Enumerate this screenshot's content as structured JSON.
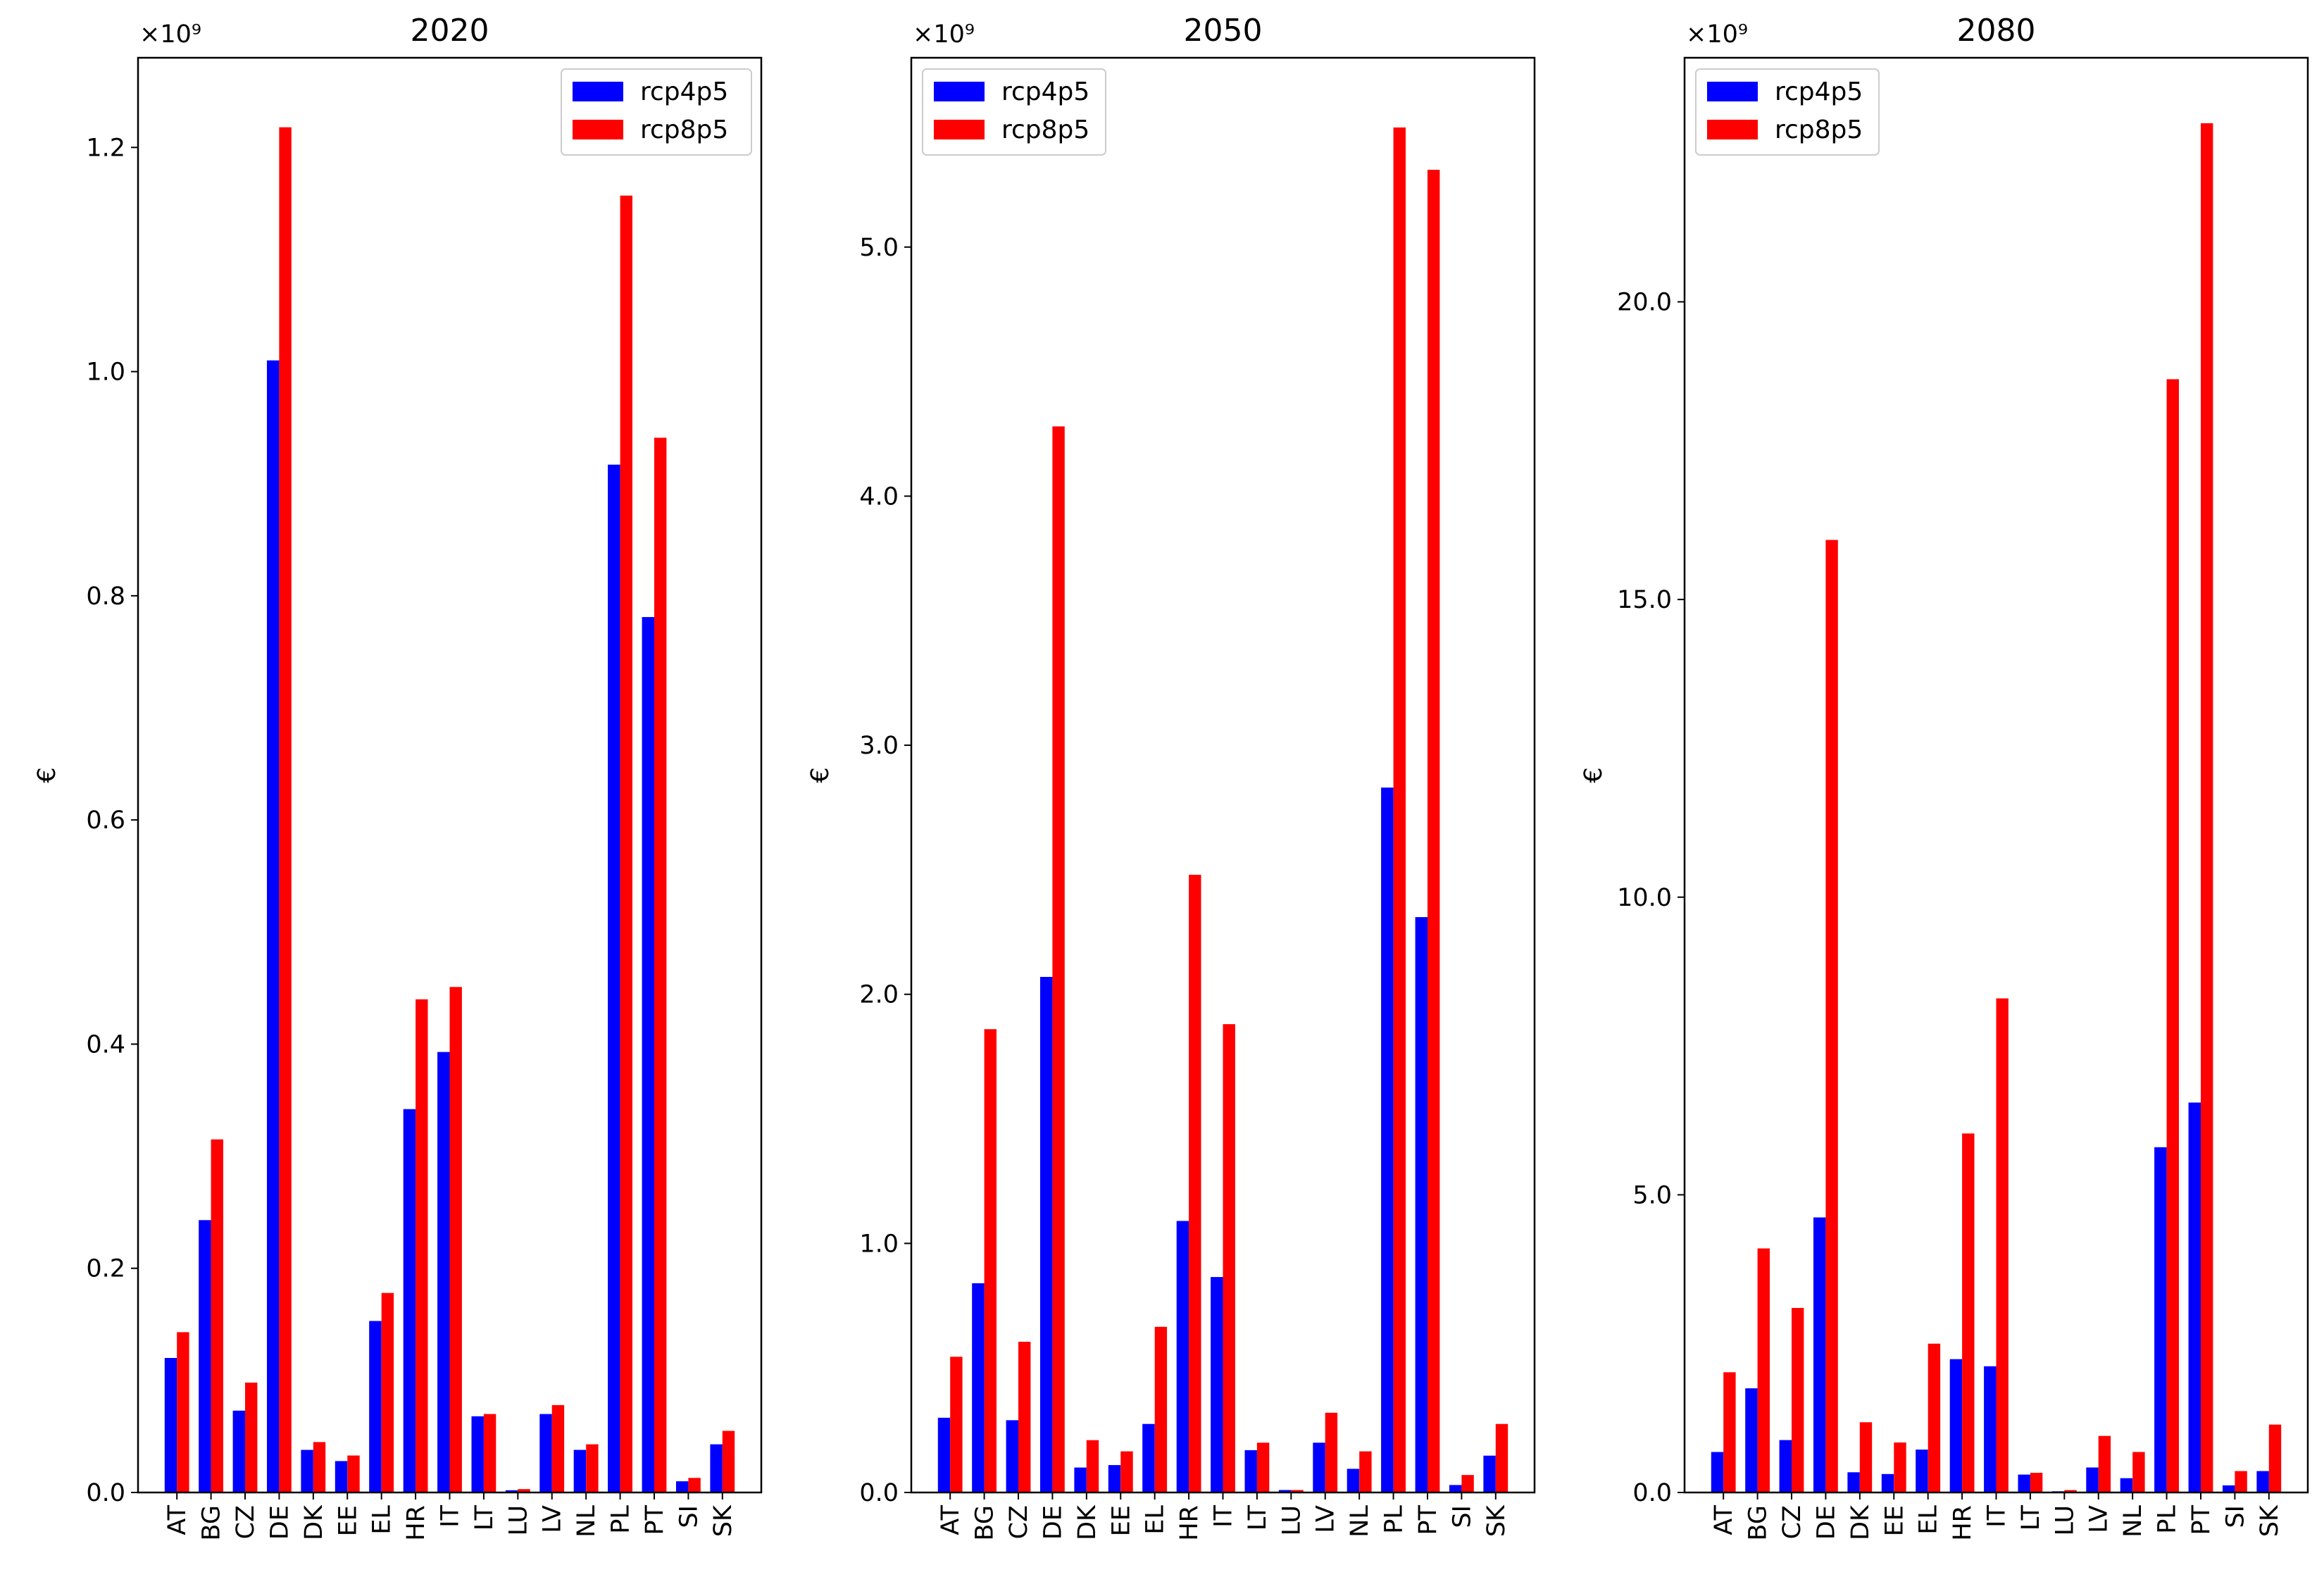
{
  "chart_data": [
    {
      "type": "bar",
      "title": "2020",
      "ylabel": "€",
      "xlabel": "",
      "exponent_label": "×10⁹",
      "ylim": [
        0,
        1.28
      ],
      "yticks": [
        "0.0",
        "0.2",
        "0.4",
        "0.6",
        "0.8",
        "1.0",
        "1.2"
      ],
      "ytick_values": [
        0,
        0.2,
        0.4,
        0.6,
        0.8,
        1.0,
        1.2
      ],
      "legend_position": "top-right",
      "categories": [
        "AT",
        "BG",
        "CZ",
        "DE",
        "DK",
        "EE",
        "EL",
        "HR",
        "IT",
        "LT",
        "LU",
        "LV",
        "NL",
        "PL",
        "PT",
        "SI",
        "SK"
      ],
      "series": [
        {
          "name": "rcp4p5",
          "color": "#0000ff",
          "values": [
            0.12,
            0.243,
            0.073,
            1.01,
            0.038,
            0.028,
            0.153,
            0.342,
            0.393,
            0.068,
            0.002,
            0.07,
            0.038,
            0.917,
            0.781,
            0.01,
            0.043
          ]
        },
        {
          "name": "rcp8p5",
          "color": "#ff0000",
          "values": [
            0.143,
            0.315,
            0.098,
            1.218,
            0.045,
            0.033,
            0.178,
            0.44,
            0.451,
            0.07,
            0.003,
            0.078,
            0.043,
            1.157,
            0.941,
            0.013,
            0.055
          ]
        }
      ]
    },
    {
      "type": "bar",
      "title": "2050",
      "ylabel": "€",
      "xlabel": "",
      "exponent_label": "×10⁹",
      "ylim": [
        0,
        5.76
      ],
      "yticks": [
        "0.0",
        "1.0",
        "2.0",
        "3.0",
        "4.0",
        "5.0"
      ],
      "ytick_values": [
        0,
        1,
        2,
        3,
        4,
        5
      ],
      "legend_position": "top-left",
      "categories": [
        "AT",
        "BG",
        "CZ",
        "DE",
        "DK",
        "EE",
        "EL",
        "HR",
        "IT",
        "LT",
        "LU",
        "LV",
        "NL",
        "PL",
        "PT",
        "SI",
        "SK"
      ],
      "series": [
        {
          "name": "rcp4p5",
          "color": "#0000ff",
          "values": [
            0.3,
            0.84,
            0.29,
            2.07,
            0.1,
            0.11,
            0.275,
            1.09,
            0.865,
            0.17,
            0.01,
            0.2,
            0.095,
            2.83,
            2.31,
            0.03,
            0.148
          ]
        },
        {
          "name": "rcp8p5",
          "color": "#ff0000",
          "values": [
            0.545,
            1.86,
            0.605,
            4.28,
            0.21,
            0.165,
            0.665,
            2.48,
            1.88,
            0.2,
            0.01,
            0.32,
            0.165,
            5.48,
            5.31,
            0.07,
            0.275
          ]
        }
      ]
    },
    {
      "type": "bar",
      "title": "2080",
      "ylabel": "€",
      "xlabel": "",
      "exponent_label": "×10⁹",
      "ylim": [
        0,
        24.1
      ],
      "yticks": [
        "0.0",
        "5.0",
        "10.0",
        "15.0",
        "20.0"
      ],
      "ytick_values": [
        0,
        5,
        10,
        15,
        20
      ],
      "legend_position": "top-left",
      "categories": [
        "AT",
        "BG",
        "CZ",
        "DE",
        "DK",
        "EE",
        "EL",
        "HR",
        "IT",
        "LT",
        "LU",
        "LV",
        "NL",
        "PL",
        "PT",
        "SI",
        "SK"
      ],
      "series": [
        {
          "name": "rcp4p5",
          "color": "#0000ff",
          "values": [
            0.68,
            1.75,
            0.88,
            4.62,
            0.34,
            0.31,
            0.72,
            2.24,
            2.12,
            0.3,
            0.02,
            0.42,
            0.24,
            5.8,
            6.55,
            0.12,
            0.36
          ]
        },
        {
          "name": "rcp8p5",
          "color": "#ff0000",
          "values": [
            2.02,
            4.1,
            3.1,
            16.0,
            1.18,
            0.84,
            2.5,
            6.03,
            8.3,
            0.33,
            0.04,
            0.95,
            0.68,
            18.7,
            23.0,
            0.36,
            1.14
          ]
        }
      ]
    }
  ]
}
